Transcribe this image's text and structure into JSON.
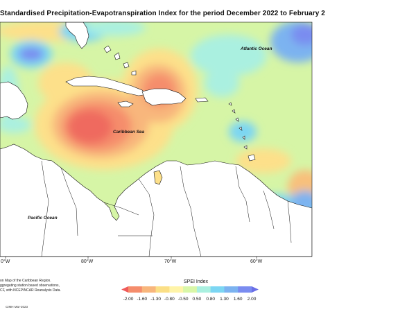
{
  "map": {
    "title": "Standardised Precipitation-Evapotranspiration Index for the period December 2022 to February 2",
    "labels": {
      "atlantic": "Atlantic Ocean",
      "caribbean": "Caribbean Sea",
      "pacific": "Pacific Ocean"
    },
    "longitudes": [
      "0°W",
      "80°W",
      "70°W",
      "60°W"
    ],
    "notes": [
      "on Map of the Caribbean Region.",
      "ggregating station based observations,",
      "CF, with NCEP/NCAR Reanalysis Data."
    ],
    "credit": "CIMH Mar-2023",
    "legend": {
      "title": "SPEI Index",
      "ticks": [
        "-2.00",
        "-1.60",
        "-1.30",
        "-0.80",
        "-0.50",
        "0.50",
        "0.80",
        "1.30",
        "1.60",
        "2.00"
      ],
      "colors": [
        "#ef5a5a",
        "#f58d6c",
        "#f8b67c",
        "#fbdf86",
        "#fff4a8",
        "#d9f7a8",
        "#aaf0e0",
        "#7cd6f3",
        "#7cb3f0",
        "#7a8cf0",
        "#6a6fe6"
      ]
    }
  }
}
